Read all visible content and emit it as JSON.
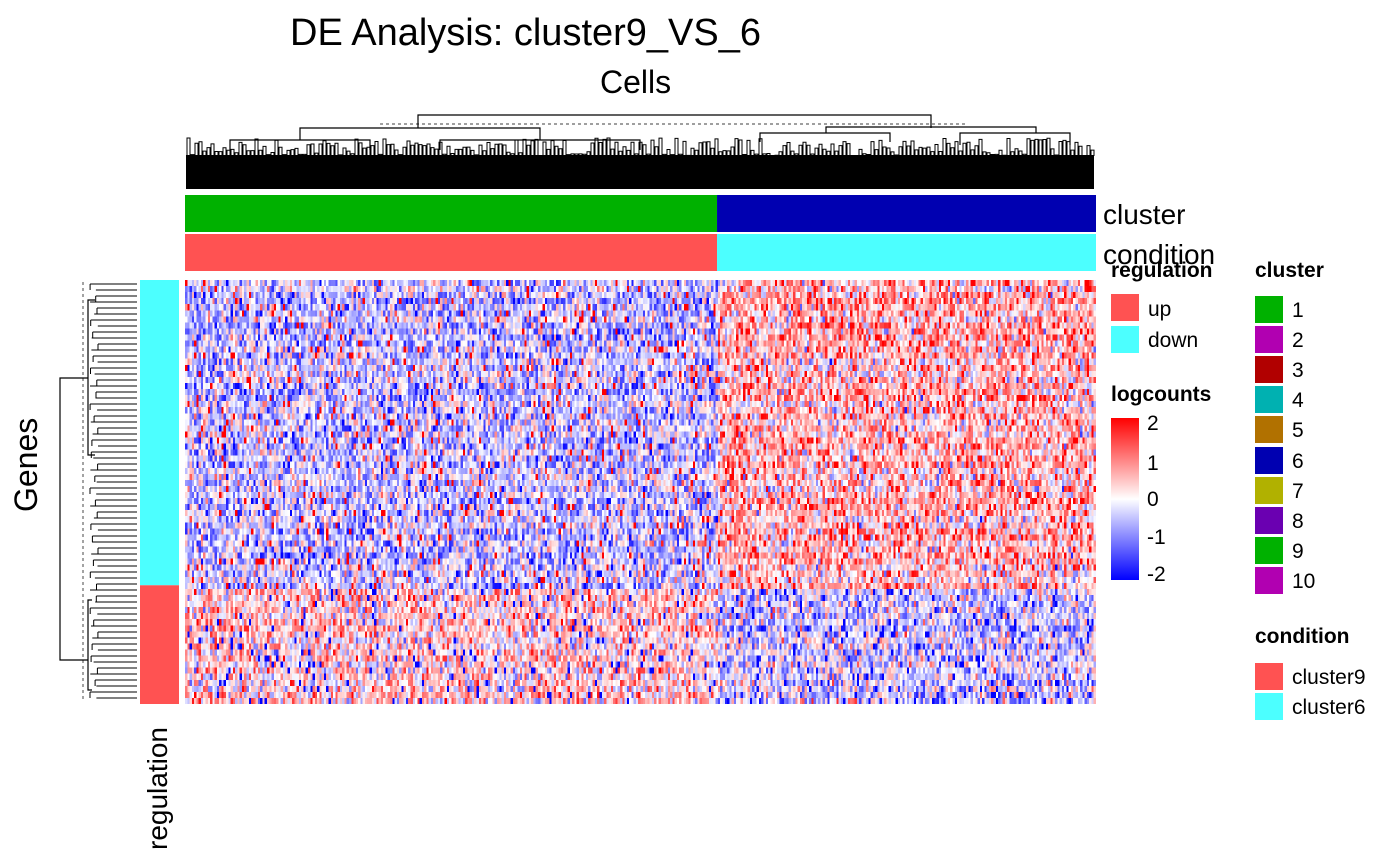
{
  "chart_data": {
    "type": "heatmap",
    "title": "DE Analysis: cluster9_VS_6",
    "column_title": "Cells",
    "row_title": "Genes",
    "row_annotation_label": "regulation",
    "column_annotations": [
      {
        "name": "cluster",
        "segments": [
          {
            "value": "9",
            "fraction": 0.584
          },
          {
            "value": "6",
            "fraction": 0.416
          }
        ]
      },
      {
        "name": "condition",
        "segments": [
          {
            "value": "cluster9",
            "fraction": 0.584
          },
          {
            "value": "cluster6",
            "fraction": 0.416
          }
        ]
      }
    ],
    "row_annotation": {
      "name": "regulation",
      "segments": [
        {
          "value": "down",
          "fraction": 0.72
        },
        {
          "value": "up",
          "fraction": 0.28
        }
      ]
    },
    "legends": {
      "regulation": {
        "title": "regulation",
        "items": [
          {
            "label": "up",
            "color": "#FF5252"
          },
          {
            "label": "down",
            "color": "#4CFFFF"
          }
        ]
      },
      "logcounts": {
        "title": "logcounts",
        "ticks": [
          "2",
          "1",
          "0",
          "-1",
          "-2"
        ],
        "range": [
          -2,
          2
        ],
        "colors": {
          "low": "#0000FF",
          "mid": "#FFFFFF",
          "high": "#FF0000"
        }
      },
      "cluster": {
        "title": "cluster",
        "items": [
          {
            "label": "1",
            "color": "#00B100"
          },
          {
            "label": "2",
            "color": "#B100B1"
          },
          {
            "label": "3",
            "color": "#B10000"
          },
          {
            "label": "4",
            "color": "#00B1B1"
          },
          {
            "label": "5",
            "color": "#B17100"
          },
          {
            "label": "6",
            "color": "#0000B1"
          },
          {
            "label": "7",
            "color": "#B1B100"
          },
          {
            "label": "8",
            "color": "#6A00B1"
          },
          {
            "label": "9",
            "color": "#00B100"
          },
          {
            "label": "10",
            "color": "#B100B1"
          }
        ]
      },
      "condition": {
        "title": "condition",
        "items": [
          {
            "label": "cluster9",
            "color": "#FF5252"
          },
          {
            "label": "cluster6",
            "color": "#4CFFFF"
          }
        ]
      }
    },
    "pattern": {
      "n_rows": 70,
      "n_cols": 400,
      "down_rows_up_in_cluster6": true,
      "up_rows_up_in_cluster9": true
    }
  }
}
